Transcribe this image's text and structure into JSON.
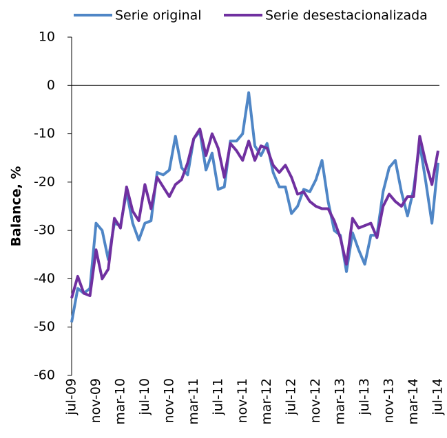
{
  "chart_data": {
    "type": "line",
    "ylabel": "Balance, %",
    "categories": [
      "jul-09",
      null,
      null,
      null,
      "nov-09",
      null,
      null,
      null,
      "mar-10",
      null,
      null,
      null,
      "jul-10",
      null,
      null,
      null,
      "nov-10",
      null,
      null,
      null,
      "mar-11",
      null,
      null,
      null,
      "jul-11",
      null,
      null,
      null,
      "nov-11",
      null,
      null,
      null,
      "mar-12",
      null,
      null,
      null,
      "jul-12",
      null,
      null,
      null,
      "nov-12",
      null,
      null,
      null,
      "mar-13",
      null,
      null,
      null,
      "jul-13",
      null,
      null,
      null,
      "nov-13",
      null,
      null,
      null,
      "mar-14",
      null,
      null,
      null,
      "jul-14"
    ],
    "series": [
      {
        "name": "Serie original",
        "color": "#4f86c6",
        "values": [
          -49,
          -42,
          -43,
          -42,
          -28.5,
          -30,
          -36,
          -28.5,
          -29,
          -22,
          -28.5,
          -32,
          -28.5,
          -28,
          -18,
          -18.5,
          -17.5,
          -10.5,
          -17,
          -18.5,
          -11,
          -9.5,
          -17.5,
          -14,
          -21.5,
          -21,
          -11.5,
          -11.5,
          -10,
          -1.5,
          -12.5,
          -14.5,
          -12,
          -18,
          -21,
          -21,
          -26.5,
          -25,
          -21.5,
          -22,
          -19.5,
          -15.5,
          -24,
          -30,
          -31,
          -38.5,
          -30.5,
          -34,
          -37,
          -31,
          -31,
          -22,
          -17,
          -15.5,
          -22,
          -27,
          -21.5,
          -12,
          -20,
          -28.5,
          -16
        ]
      },
      {
        "name": "Serie desestacionalizada",
        "color": "#7030a0",
        "values": [
          -44,
          -39.5,
          -43,
          -43.5,
          -34,
          -40,
          -38,
          -27.5,
          -29.5,
          -21,
          -26,
          -28,
          -20.5,
          -25.5,
          -19,
          -21,
          -23,
          -20.5,
          -19.5,
          -16,
          -11,
          -9,
          -14.5,
          -10,
          -13,
          -19,
          -12,
          -13.5,
          -15.5,
          -11.5,
          -15.5,
          -12.5,
          -13,
          -16.5,
          -18,
          -16.5,
          -19,
          -22.5,
          -22,
          -24,
          -25,
          -25.5,
          -25.5,
          -28,
          -31.5,
          -37,
          -27.5,
          -29.5,
          -29,
          -28.5,
          -31.5,
          -25,
          -22.5,
          -24,
          -25,
          -23,
          -23,
          -10.5,
          -16,
          -20.5,
          -13.5
        ]
      }
    ],
    "ylim": [
      -60,
      10
    ],
    "yticks": [
      -60,
      -50,
      -40,
      -30,
      -20,
      -10,
      0,
      10
    ],
    "legend": "top"
  }
}
